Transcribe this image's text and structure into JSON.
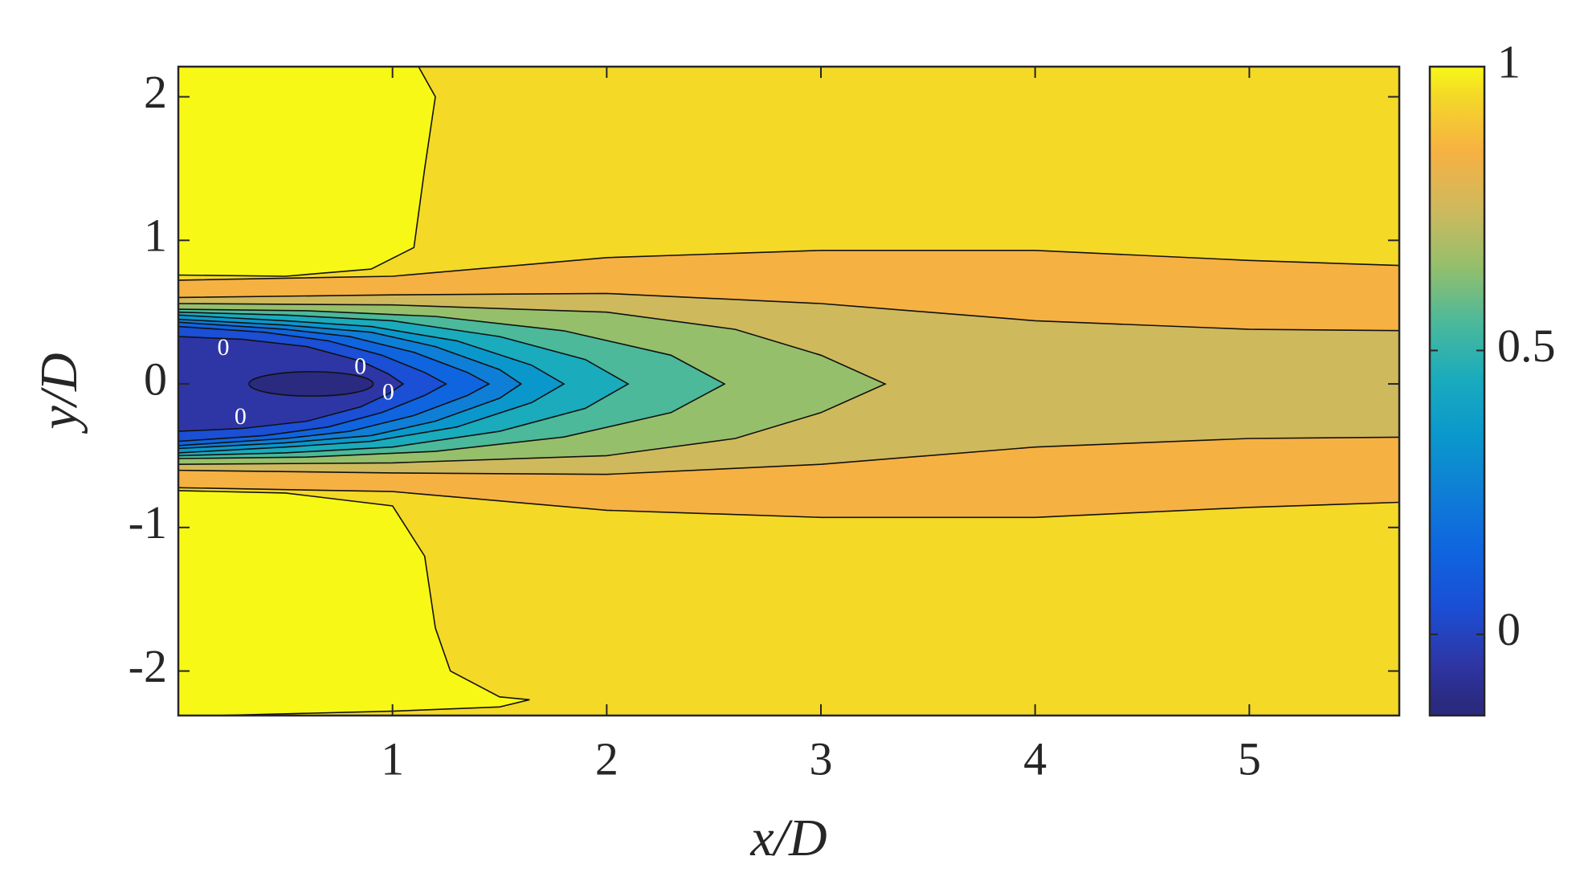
{
  "chart_data": {
    "type": "contour",
    "x_label": "x/D",
    "y_label": "y/D",
    "xlim": [
      0,
      5.7
    ],
    "ylim": [
      -2.31,
      2.21
    ],
    "xticks": [
      1,
      2,
      3,
      4,
      5
    ],
    "yticks": [
      -2,
      -1,
      0,
      1,
      2
    ],
    "levels": [
      -0.1,
      0,
      0.1,
      0.2,
      0.3,
      0.4,
      0.5,
      0.6,
      0.7,
      0.8,
      0.9,
      1
    ],
    "colors": [
      "#2a2a80",
      "#2e36a6",
      "#1a4fd6",
      "#0f65df",
      "#0f7ed6",
      "#0a98cc",
      "#1aabbd",
      "#4bb99a",
      "#96bf6b",
      "#cfb95d",
      "#f6b143",
      "#f4d927",
      "#f8f817"
    ],
    "contour_labels": [
      "0",
      "0",
      "0",
      "0"
    ],
    "clim": [
      -0.143,
      1
    ],
    "cticks": [
      0,
      0.5,
      1
    ]
  }
}
